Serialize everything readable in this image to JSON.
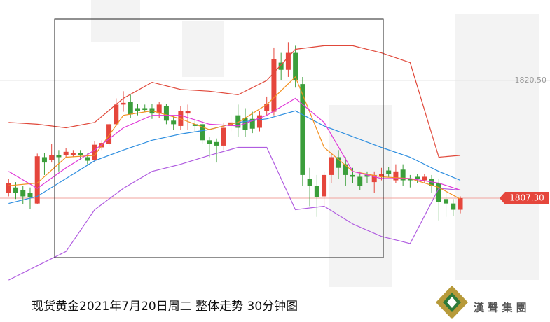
{
  "chart_data": {
    "type": "candlestick",
    "title": "现货黄金2021年7月20日周二 整体走势 30分钟图",
    "brand": "漢 聲 集 團",
    "up_color": "#e5463c",
    "down_color": "#3b9e3b",
    "xlim": [
      -1.2,
      67.2
    ],
    "ylim": [
      1793.39,
      1829.54
    ],
    "yticks": [
      {
        "value": 1820.5,
        "label": "1820.50"
      }
    ],
    "last_price": {
      "value": 1807.3,
      "label": "1807.30"
    },
    "open": [
      1807.9,
      1808.5,
      1808.2,
      1807.9,
      1806.7,
      1811.9,
      1811.6,
      1812.1,
      1812.1,
      1812.1,
      1812.4,
      1811.9,
      1811.6,
      1813.0,
      1813.4,
      1815.6,
      1817.8,
      1818.1,
      1817.4,
      1817.4,
      1817.4,
      1816.8,
      1817.6,
      1816.0,
      1815.4,
      1816.8,
      1815.6,
      1815.6,
      1813.8,
      1813.6,
      1813.2,
      1815.4,
      1816.6,
      1816.3,
      1816.2,
      1815.2,
      1817.1,
      1817.0,
      1822.5,
      1821.7,
      1823.6,
      1820.1,
      1809.5,
      1808.7,
      1807.5,
      1809.9,
      1811.9,
      1811.1,
      1809.9,
      1809.7,
      1809.9,
      1809.1,
      1809.7,
      1810.4,
      1809.3,
      1810.5,
      1809.5,
      1809.7,
      1809.3,
      1809.5,
      1809.0,
      1807.2,
      1806.7,
      1806.0
    ],
    "high": [
      1809.5,
      1809.1,
      1808.7,
      1808.5,
      1812.3,
      1812.4,
      1813.4,
      1812.7,
      1812.9,
      1812.7,
      1812.7,
      1812.3,
      1813.7,
      1813.8,
      1815.8,
      1818.5,
      1819.3,
      1818.9,
      1817.9,
      1817.8,
      1817.9,
      1818.1,
      1817.9,
      1816.6,
      1817.6,
      1817.8,
      1816.2,
      1816.0,
      1814.2,
      1814.0,
      1815.8,
      1816.6,
      1817.8,
      1817.4,
      1817.0,
      1817.1,
      1818.7,
      1824.2,
      1823.6,
      1824.8,
      1824.4,
      1820.9,
      1810.7,
      1809.9,
      1810.3,
      1812.3,
      1812.7,
      1811.9,
      1810.7,
      1810.3,
      1810.3,
      1810.3,
      1810.7,
      1810.8,
      1811.1,
      1811.1,
      1809.9,
      1810.0,
      1810.0,
      1809.9,
      1809.5,
      1807.9,
      1807.2,
      1807.5
    ],
    "low": [
      1807.5,
      1807.2,
      1806.6,
      1806.1,
      1806.6,
      1809.9,
      1811.3,
      1810.3,
      1811.9,
      1811.9,
      1811.6,
      1811.1,
      1811.3,
      1812.7,
      1813.2,
      1815.4,
      1817.0,
      1816.3,
      1816.6,
      1817.0,
      1816.2,
      1816.3,
      1815.6,
      1815.0,
      1815.0,
      1815.0,
      1814.8,
      1813.4,
      1811.9,
      1811.3,
      1812.7,
      1814.8,
      1814.2,
      1814.2,
      1814.6,
      1814.8,
      1816.6,
      1816.6,
      1820.5,
      1820.9,
      1819.7,
      1808.7,
      1806.4,
      1805.2,
      1806.4,
      1809.0,
      1809.5,
      1808.7,
      1809.0,
      1808.2,
      1809.0,
      1807.9,
      1809.3,
      1809.7,
      1809.0,
      1808.7,
      1808.5,
      1809.0,
      1809.0,
      1807.9,
      1804.8,
      1805.2,
      1805.3,
      1805.6
    ],
    "close": [
      1809.0,
      1807.9,
      1807.5,
      1807.4,
      1812.0,
      1811.3,
      1812.1,
      1811.9,
      1812.5,
      1812.4,
      1812.1,
      1811.5,
      1813.3,
      1813.5,
      1815.6,
      1817.8,
      1818.0,
      1816.7,
      1817.1,
      1817.2,
      1816.8,
      1817.8,
      1816.0,
      1815.6,
      1817.1,
      1817.1,
      1815.4,
      1813.8,
      1813.4,
      1813.2,
      1815.2,
      1815.8,
      1815.2,
      1815.0,
      1815.1,
      1816.6,
      1817.9,
      1822.9,
      1821.7,
      1823.6,
      1820.5,
      1809.9,
      1808.7,
      1807.4,
      1809.9,
      1811.9,
      1810.7,
      1809.9,
      1809.7,
      1808.7,
      1809.7,
      1809.9,
      1810.0,
      1810.0,
      1810.3,
      1809.3,
      1809.3,
      1809.5,
      1809.7,
      1808.7,
      1806.9,
      1806.7,
      1806.0,
      1807.3
    ],
    "lines": [
      {
        "color": "#e0483a",
        "x": [
          0,
          4,
          8,
          12,
          16,
          20,
          24,
          28,
          32,
          36,
          40,
          44,
          48,
          52,
          56,
          60,
          63
        ],
        "values": [
          1815.8,
          1815.6,
          1815.2,
          1815.8,
          1818.5,
          1820.3,
          1819.5,
          1819.3,
          1818.9,
          1820.5,
          1824.0,
          1824.4,
          1824.4,
          1823.6,
          1822.5,
          1811.9,
          1812.1
        ]
      },
      {
        "color": "#2f8fe0",
        "x": [
          0,
          4,
          8,
          12,
          16,
          20,
          24,
          28,
          32,
          36,
          40,
          44,
          48,
          52,
          56,
          60,
          63
        ],
        "values": [
          1806.7,
          1807.5,
          1809.5,
          1811.5,
          1812.7,
          1813.8,
          1814.5,
          1815.0,
          1815.8,
          1816.2,
          1817.1,
          1815.4,
          1814.2,
          1813.0,
          1811.9,
          1810.3,
          1809.3
        ]
      },
      {
        "color": "#b05ce0",
        "x": [
          0,
          4,
          8,
          12,
          16,
          20,
          24,
          28,
          32,
          36,
          40,
          44,
          48,
          52,
          56,
          60,
          63
        ],
        "values": [
          1798.1,
          1799.7,
          1801.3,
          1806.0,
          1808.4,
          1810.3,
          1811.1,
          1812.1,
          1813.0,
          1813.0,
          1806.0,
          1806.4,
          1804.4,
          1803.0,
          1802.2,
          1808.4,
          1808.2
        ]
      },
      {
        "color": "#f39020",
        "x": [
          0,
          4,
          8,
          12,
          16,
          20,
          24,
          28,
          32,
          36,
          40,
          44,
          48,
          52,
          56,
          60,
          63
        ],
        "values": [
          1808.7,
          1809.0,
          1811.9,
          1812.1,
          1816.6,
          1817.1,
          1816.2,
          1815.0,
          1815.8,
          1817.8,
          1820.9,
          1813.0,
          1810.3,
          1809.7,
          1809.5,
          1808.5,
          1807.2
        ]
      },
      {
        "color": "#e03ad8",
        "x": [
          0,
          4,
          8,
          12,
          16,
          20,
          24,
          28,
          32,
          36,
          40,
          44,
          48,
          52,
          56,
          60,
          63
        ],
        "values": [
          1810.3,
          1808.4,
          1810.7,
          1812.7,
          1815.2,
          1816.6,
          1816.6,
          1815.6,
          1815.4,
          1816.6,
          1818.5,
          1815.8,
          1810.3,
          1809.5,
          1809.5,
          1809.0,
          1808.2
        ]
      }
    ]
  }
}
